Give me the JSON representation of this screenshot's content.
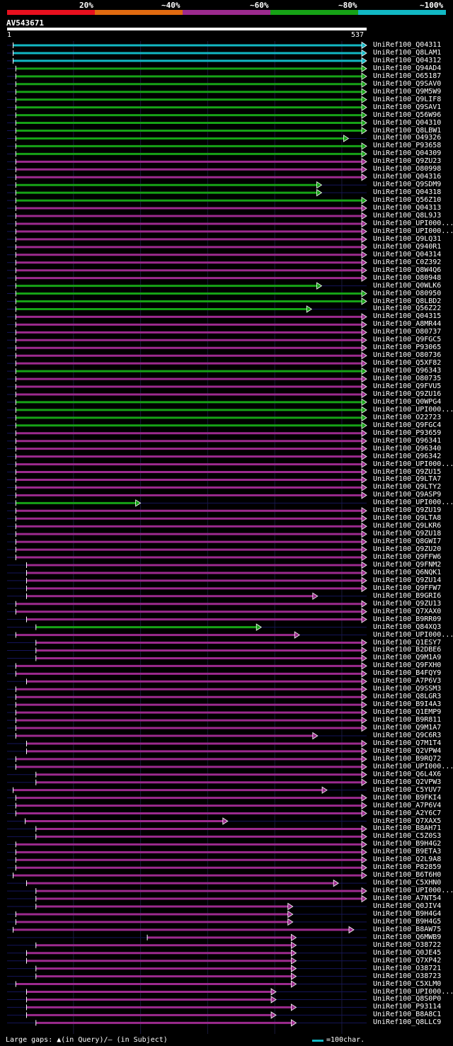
{
  "chart_data": {
    "type": "alignment-overview",
    "query": {
      "id": "AV543671",
      "start": 1,
      "end": 537
    },
    "legend": {
      "scale": [
        {
          "label": "20%",
          "color": "#e8101e"
        },
        {
          "label": "~40%",
          "color": "#e06a10"
        },
        {
          "label": "~60%",
          "color": "#9c2a8e"
        },
        {
          "label": "~80%",
          "color": "#16a216"
        },
        {
          "label": "~100%",
          "color": "#12b8c4"
        }
      ],
      "gap_note": "Large gaps: ▲(in Query)/– (in Subject)",
      "scale_note": "=100char.",
      "scale_color": "#12b8c4"
    },
    "hits": [
      {
        "name": "UniRef100_Q04311",
        "c": "C",
        "s": 10,
        "e": 537
      },
      {
        "name": "UniRef100_Q8LAM1",
        "c": "C",
        "s": 10,
        "e": 537
      },
      {
        "name": "UniRef100_Q04312",
        "c": "C",
        "s": 10,
        "e": 537
      },
      {
        "name": "UniRef100_Q94AD4",
        "c": "G",
        "s": 14,
        "e": 537
      },
      {
        "name": "UniRef100_O65187",
        "c": "G",
        "s": 14,
        "e": 537
      },
      {
        "name": "UniRef100_Q9SAV0",
        "c": "G",
        "s": 14,
        "e": 537
      },
      {
        "name": "UniRef100_Q9M5W9",
        "c": "G",
        "s": 14,
        "e": 537
      },
      {
        "name": "UniRef100_Q9LIF8",
        "c": "G",
        "s": 14,
        "e": 537
      },
      {
        "name": "UniRef100_Q9SAV1",
        "c": "G",
        "s": 14,
        "e": 537
      },
      {
        "name": "UniRef100_Q56W96",
        "c": "G",
        "s": 14,
        "e": 537
      },
      {
        "name": "UniRef100_Q04310",
        "c": "G",
        "s": 14,
        "e": 537
      },
      {
        "name": "UniRef100_Q8LBW1",
        "c": "G",
        "s": 14,
        "e": 537
      },
      {
        "name": "UniRef100_O49326",
        "c": "G",
        "s": 14,
        "e": 510
      },
      {
        "name": "UniRef100_P93658",
        "c": "G",
        "s": 14,
        "e": 537
      },
      {
        "name": "UniRef100_Q04309",
        "c": "G",
        "s": 14,
        "e": 537
      },
      {
        "name": "UniRef100_Q9ZU23",
        "c": "M",
        "s": 14,
        "e": 537
      },
      {
        "name": "UniRef100_O80998",
        "c": "M",
        "s": 14,
        "e": 537
      },
      {
        "name": "UniRef100_Q04316",
        "c": "M",
        "s": 14,
        "e": 537
      },
      {
        "name": "UniRef100_Q9SDM9",
        "c": "G",
        "s": 14,
        "e": 470
      },
      {
        "name": "UniRef100_Q04318",
        "c": "G",
        "s": 14,
        "e": 470
      },
      {
        "name": "UniRef100_Q56Z10",
        "c": "G",
        "s": 14,
        "e": 537
      },
      {
        "name": "UniRef100_Q04313",
        "c": "M",
        "s": 14,
        "e": 537
      },
      {
        "name": "UniRef100_Q8L9J3",
        "c": "M",
        "s": 14,
        "e": 537
      },
      {
        "name": "UniRef100_UPI000...",
        "c": "M",
        "s": 14,
        "e": 537
      },
      {
        "name": "UniRef100_UPI000...",
        "c": "M",
        "s": 14,
        "e": 537
      },
      {
        "name": "UniRef100_Q9LQ31",
        "c": "M",
        "s": 14,
        "e": 537
      },
      {
        "name": "UniRef100_Q940R1",
        "c": "M",
        "s": 14,
        "e": 537
      },
      {
        "name": "UniRef100_Q04314",
        "c": "M",
        "s": 14,
        "e": 537
      },
      {
        "name": "UniRef100_C0Z392",
        "c": "M",
        "s": 14,
        "e": 537
      },
      {
        "name": "UniRef100_Q8W4Q6",
        "c": "M",
        "s": 14,
        "e": 537
      },
      {
        "name": "UniRef100_O80948",
        "c": "M",
        "s": 14,
        "e": 537
      },
      {
        "name": "UniRef100_Q0WLK6",
        "c": "G",
        "s": 14,
        "e": 470
      },
      {
        "name": "UniRef100_O80950",
        "c": "G",
        "s": 14,
        "e": 537
      },
      {
        "name": "UniRef100_Q8LBD2",
        "c": "G",
        "s": 14,
        "e": 537
      },
      {
        "name": "UniRef100_Q56Z22",
        "c": "G",
        "s": 14,
        "e": 455
      },
      {
        "name": "UniRef100_Q04315",
        "c": "M",
        "s": 14,
        "e": 537
      },
      {
        "name": "UniRef100_A8MR44",
        "c": "M",
        "s": 14,
        "e": 537
      },
      {
        "name": "UniRef100_O80737",
        "c": "M",
        "s": 14,
        "e": 537
      },
      {
        "name": "UniRef100_Q9FGC5",
        "c": "M",
        "s": 14,
        "e": 537
      },
      {
        "name": "UniRef100_P93065",
        "c": "M",
        "s": 14,
        "e": 537
      },
      {
        "name": "UniRef100_O80736",
        "c": "M",
        "s": 14,
        "e": 537
      },
      {
        "name": "UniRef100_Q5XF82",
        "c": "M",
        "s": 14,
        "e": 537
      },
      {
        "name": "UniRef100_Q96343",
        "c": "G",
        "s": 14,
        "e": 537
      },
      {
        "name": "UniRef100_O80735",
        "c": "M",
        "s": 14,
        "e": 537
      },
      {
        "name": "UniRef100_Q9FVU5",
        "c": "M",
        "s": 14,
        "e": 537
      },
      {
        "name": "UniRef100_Q9ZU16",
        "c": "M",
        "s": 14,
        "e": 537
      },
      {
        "name": "UniRef100_Q0WPG4",
        "c": "G",
        "s": 14,
        "e": 537
      },
      {
        "name": "UniRef100_UPI000...",
        "c": "G",
        "s": 14,
        "e": 537
      },
      {
        "name": "UniRef100_O22723",
        "c": "G",
        "s": 14,
        "e": 537
      },
      {
        "name": "UniRef100_Q9FGC4",
        "c": "G",
        "s": 14,
        "e": 537
      },
      {
        "name": "UniRef100_P93659",
        "c": "M",
        "s": 14,
        "e": 537
      },
      {
        "name": "UniRef100_Q96341",
        "c": "M",
        "s": 14,
        "e": 537
      },
      {
        "name": "UniRef100_Q96340",
        "c": "M",
        "s": 14,
        "e": 537
      },
      {
        "name": "UniRef100_Q96342",
        "c": "M",
        "s": 14,
        "e": 537
      },
      {
        "name": "UniRef100_UPI000...",
        "c": "M",
        "s": 14,
        "e": 537
      },
      {
        "name": "UniRef100_Q9ZU15",
        "c": "M",
        "s": 14,
        "e": 537
      },
      {
        "name": "UniRef100_Q9LTA7",
        "c": "M",
        "s": 14,
        "e": 537
      },
      {
        "name": "UniRef100_Q9LTY2",
        "c": "M",
        "s": 14,
        "e": 537
      },
      {
        "name": "UniRef100_Q9ASP9",
        "c": "M",
        "s": 14,
        "e": 537
      },
      {
        "name": "UniRef100_UPI000...",
        "c": "G",
        "s": 14,
        "e": 200
      },
      {
        "name": "UniRef100_Q9ZU19",
        "c": "M",
        "s": 14,
        "e": 537
      },
      {
        "name": "UniRef100_Q9LTA8",
        "c": "M",
        "s": 14,
        "e": 537
      },
      {
        "name": "UniRef100_Q9LKR6",
        "c": "M",
        "s": 14,
        "e": 537
      },
      {
        "name": "UniRef100_Q9ZU18",
        "c": "M",
        "s": 14,
        "e": 537
      },
      {
        "name": "UniRef100_Q8GWI7",
        "c": "M",
        "s": 14,
        "e": 537
      },
      {
        "name": "UniRef100_Q9ZU20",
        "c": "M",
        "s": 14,
        "e": 537
      },
      {
        "name": "UniRef100_Q9FFW6",
        "c": "M",
        "s": 14,
        "e": 537
      },
      {
        "name": "UniRef100_Q9FNM2",
        "c": "M",
        "s": 30,
        "e": 537
      },
      {
        "name": "UniRef100_Q6NQK1",
        "c": "M",
        "s": 30,
        "e": 537
      },
      {
        "name": "UniRef100_Q9ZU14",
        "c": "M",
        "s": 30,
        "e": 537
      },
      {
        "name": "UniRef100_Q9FFW7",
        "c": "M",
        "s": 30,
        "e": 537
      },
      {
        "name": "UniRef100_B9GRI6",
        "c": "M",
        "s": 30,
        "e": 464
      },
      {
        "name": "UniRef100_Q9ZU13",
        "c": "M",
        "s": 14,
        "e": 537
      },
      {
        "name": "UniRef100_Q7XAX0",
        "c": "M",
        "s": 14,
        "e": 537
      },
      {
        "name": "UniRef100_B9RR09",
        "c": "M",
        "s": 30,
        "e": 537
      },
      {
        "name": "UniRef100_Q84XQ3",
        "c": "G",
        "s": 44,
        "e": 380
      },
      {
        "name": "UniRef100_UPI000...",
        "c": "M",
        "s": 14,
        "e": 437
      },
      {
        "name": "UniRef100_Q1ESY7",
        "c": "M",
        "s": 44,
        "e": 537
      },
      {
        "name": "UniRef100_B2DBE6",
        "c": "M",
        "s": 44,
        "e": 537
      },
      {
        "name": "UniRef100_Q9M1A9",
        "c": "M",
        "s": 44,
        "e": 537
      },
      {
        "name": "UniRef100_Q9FXH0",
        "c": "M",
        "s": 14,
        "e": 537
      },
      {
        "name": "UniRef100_B4FQY9",
        "c": "M",
        "s": 14,
        "e": 537
      },
      {
        "name": "UniRef100_A7P6V3",
        "c": "M",
        "s": 30,
        "e": 537
      },
      {
        "name": "UniRef100_Q9SSM3",
        "c": "M",
        "s": 14,
        "e": 537
      },
      {
        "name": "UniRef100_Q8LGR3",
        "c": "M",
        "s": 14,
        "e": 537
      },
      {
        "name": "UniRef100_B9I4A3",
        "c": "M",
        "s": 14,
        "e": 537
      },
      {
        "name": "UniRef100_Q1EMP9",
        "c": "M",
        "s": 14,
        "e": 537
      },
      {
        "name": "UniRef100_B9R811",
        "c": "M",
        "s": 14,
        "e": 537
      },
      {
        "name": "UniRef100_Q9M1A7",
        "c": "M",
        "s": 14,
        "e": 537
      },
      {
        "name": "UniRef100_Q9C6R3",
        "c": "M",
        "s": 14,
        "e": 464
      },
      {
        "name": "UniRef100_Q7M1T4",
        "c": "M",
        "s": 30,
        "e": 537
      },
      {
        "name": "UniRef100_Q2VPW4",
        "c": "M",
        "s": 30,
        "e": 537
      },
      {
        "name": "UniRef100_B9RQ72",
        "c": "M",
        "s": 14,
        "e": 537
      },
      {
        "name": "UniRef100_UPI000...",
        "c": "M",
        "s": 14,
        "e": 537
      },
      {
        "name": "UniRef100_Q6L4X6",
        "c": "M",
        "s": 44,
        "e": 537
      },
      {
        "name": "UniRef100_Q2VPW3",
        "c": "M",
        "s": 44,
        "e": 537
      },
      {
        "name": "UniRef100_C5YUV7",
        "c": "M",
        "s": 10,
        "e": 478
      },
      {
        "name": "UniRef100_B9FKI4",
        "c": "M",
        "s": 14,
        "e": 537
      },
      {
        "name": "UniRef100_A7P6V4",
        "c": "M",
        "s": 14,
        "e": 537
      },
      {
        "name": "UniRef100_A2Y6C7",
        "c": "M",
        "s": 14,
        "e": 537
      },
      {
        "name": "UniRef100_Q7XAX5",
        "c": "M",
        "s": 28,
        "e": 330
      },
      {
        "name": "UniRef100_B8AH71",
        "c": "M",
        "s": 44,
        "e": 537
      },
      {
        "name": "UniRef100_C5Z0S3",
        "c": "M",
        "s": 44,
        "e": 537
      },
      {
        "name": "UniRef100_B9H4G2",
        "c": "M",
        "s": 14,
        "e": 537
      },
      {
        "name": "UniRef100_B9ETA3",
        "c": "M",
        "s": 14,
        "e": 537
      },
      {
        "name": "UniRef100_Q2L9A8",
        "c": "M",
        "s": 14,
        "e": 537
      },
      {
        "name": "UniRef100_P82859",
        "c": "M",
        "s": 14,
        "e": 537
      },
      {
        "name": "UniRef100_B6T6H0",
        "c": "M",
        "s": 10,
        "e": 537
      },
      {
        "name": "UniRef100_C5XHN0",
        "c": "M",
        "s": 30,
        "e": 495
      },
      {
        "name": "UniRef100_UPI000...",
        "c": "M",
        "s": 44,
        "e": 537
      },
      {
        "name": "UniRef100_A7NT54",
        "c": "M",
        "s": 44,
        "e": 537
      },
      {
        "name": "UniRef100_Q0JIV4",
        "c": "M",
        "s": 44,
        "e": 427
      },
      {
        "name": "UniRef100_B9H4G4",
        "c": "M",
        "s": 14,
        "e": 427
      },
      {
        "name": "UniRef100_B9H4G5",
        "c": "M",
        "s": 14,
        "e": 427
      },
      {
        "name": "UniRef100_B8AW75",
        "c": "M",
        "s": 10,
        "e": 518
      },
      {
        "name": "UniRef100_Q6MWB9",
        "c": "M",
        "s": 210,
        "e": 432
      },
      {
        "name": "UniRef100_O38722",
        "c": "M",
        "s": 44,
        "e": 432
      },
      {
        "name": "UniRef100_Q0JE45",
        "c": "M",
        "s": 30,
        "e": 432
      },
      {
        "name": "UniRef100_Q7XP42",
        "c": "M",
        "s": 30,
        "e": 432
      },
      {
        "name": "UniRef100_O38721",
        "c": "M",
        "s": 44,
        "e": 432
      },
      {
        "name": "UniRef100_O38723",
        "c": "M",
        "s": 44,
        "e": 432
      },
      {
        "name": "UniRef100_C5XLM0",
        "c": "M",
        "s": 14,
        "e": 432
      },
      {
        "name": "UniRef100_UPI000...",
        "c": "M",
        "s": 30,
        "e": 402
      },
      {
        "name": "UniRef100_Q8S0P0",
        "c": "M",
        "s": 30,
        "e": 402
      },
      {
        "name": "UniRef100_P93114",
        "c": "M",
        "s": 30,
        "e": 432
      },
      {
        "name": "UniRef100_B8A8C1",
        "c": "M",
        "s": 30,
        "e": 402
      },
      {
        "name": "UniRef100_Q8LLC9",
        "c": "M",
        "s": 44,
        "e": 432
      }
    ],
    "color_map": {
      "C": "#12b8c4",
      "G": "#16a216",
      "M": "#9c2a8e",
      "R": "#e8101e",
      "O": "#e06a10"
    }
  }
}
